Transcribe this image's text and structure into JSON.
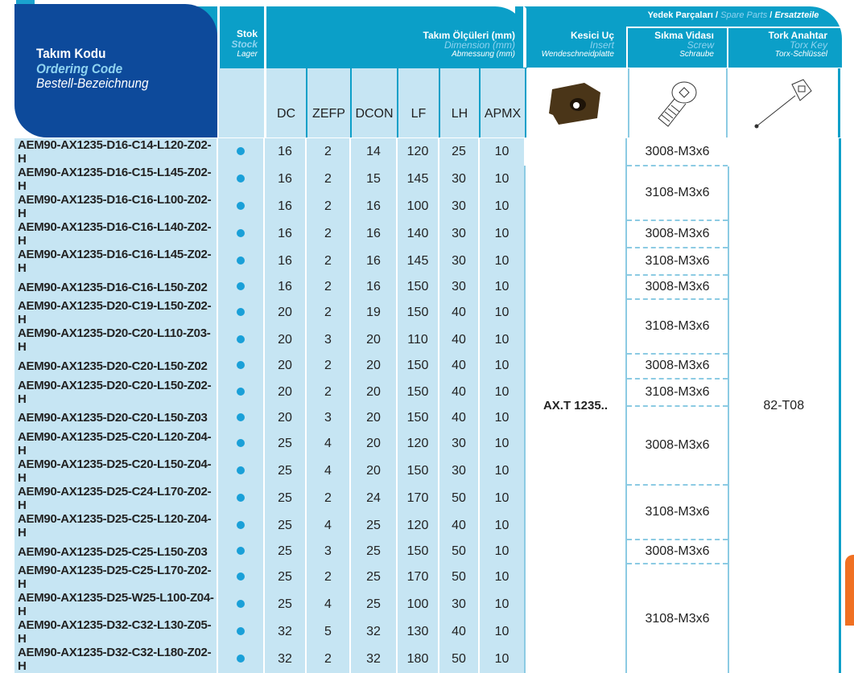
{
  "header": {
    "ordering_code": {
      "tr": "Takım Kodu",
      "en": "Ordering Code",
      "de": "Bestell-Bezeichnung"
    },
    "stock": {
      "tr": "Stok",
      "en": "Stock",
      "de": "Lager"
    },
    "dimension": {
      "tr": "Takım Ölçüleri (mm)",
      "en": "Dimension (mm)",
      "de": "Abmessung (mm)"
    },
    "insert": {
      "tr": "Kesici Uç",
      "en": "Insert",
      "de": "Wendeschneidplatte"
    },
    "spare_parts": {
      "tr": "Yedek Parçaları",
      "en": "Spare Parts",
      "de": "Ersatzteile",
      "sep": "/"
    },
    "screw": {
      "tr": "Sıkma Vidası",
      "en": "Screw",
      "de": "Schraube"
    },
    "key": {
      "tr": "Tork Anahtar",
      "en": "Torx Key",
      "de": "Torx-Schlüssel"
    },
    "columns": [
      "DC",
      "ZEFP",
      "DCON",
      "LF",
      "LH",
      "APMX"
    ]
  },
  "icons": {
    "insert": "insert-image",
    "screw": "torx-screw-icon",
    "key": "torx-key-icon",
    "stock": "stock-dot"
  },
  "colors": {
    "header": "#0b9fc8",
    "code_box": "#0d4a9b",
    "row_bg": "#c6e5f3",
    "stock_dot": "#1aa0d8"
  },
  "rows": [
    {
      "code": "AEM90-AX1235-D16-C14-L120-Z02-H",
      "v": [
        "16",
        "2",
        "14",
        "120",
        "25",
        "10"
      ]
    },
    {
      "code": "AEM90-AX1235-D16-C15-L145-Z02-H",
      "v": [
        "16",
        "2",
        "15",
        "145",
        "30",
        "10"
      ]
    },
    {
      "code": "AEM90-AX1235-D16-C16-L100-Z02-H",
      "v": [
        "16",
        "2",
        "16",
        "100",
        "30",
        "10"
      ]
    },
    {
      "code": "AEM90-AX1235-D16-C16-L140-Z02-H",
      "v": [
        "16",
        "2",
        "16",
        "140",
        "30",
        "10"
      ]
    },
    {
      "code": "AEM90-AX1235-D16-C16-L145-Z02-H",
      "v": [
        "16",
        "2",
        "16",
        "145",
        "30",
        "10"
      ]
    },
    {
      "code": "AEM90-AX1235-D16-C16-L150-Z02",
      "v": [
        "16",
        "2",
        "16",
        "150",
        "30",
        "10"
      ]
    },
    {
      "code": "AEM90-AX1235-D20-C19-L150-Z02-H",
      "v": [
        "20",
        "2",
        "19",
        "150",
        "40",
        "10"
      ]
    },
    {
      "code": "AEM90-AX1235-D20-C20-L110-Z03-H",
      "v": [
        "20",
        "3",
        "20",
        "110",
        "40",
        "10"
      ]
    },
    {
      "code": "AEM90-AX1235-D20-C20-L150-Z02",
      "v": [
        "20",
        "2",
        "20",
        "150",
        "40",
        "10"
      ]
    },
    {
      "code": "AEM90-AX1235-D20-C20-L150-Z02-H",
      "v": [
        "20",
        "2",
        "20",
        "150",
        "40",
        "10"
      ]
    },
    {
      "code": "AEM90-AX1235-D20-C20-L150-Z03",
      "v": [
        "20",
        "3",
        "20",
        "150",
        "40",
        "10"
      ]
    },
    {
      "code": "AEM90-AX1235-D25-C20-L120-Z04-H",
      "v": [
        "25",
        "4",
        "20",
        "120",
        "30",
        "10"
      ]
    },
    {
      "code": "AEM90-AX1235-D25-C20-L150-Z04-H",
      "v": [
        "25",
        "4",
        "20",
        "150",
        "30",
        "10"
      ]
    },
    {
      "code": "AEM90-AX1235-D25-C24-L170-Z02-H",
      "v": [
        "25",
        "2",
        "24",
        "170",
        "50",
        "10"
      ]
    },
    {
      "code": "AEM90-AX1235-D25-C25-L120-Z04-H",
      "v": [
        "25",
        "4",
        "25",
        "120",
        "40",
        "10"
      ]
    },
    {
      "code": "AEM90-AX1235-D25-C25-L150-Z03",
      "v": [
        "25",
        "3",
        "25",
        "150",
        "50",
        "10"
      ]
    },
    {
      "code": "AEM90-AX1235-D25-C25-L170-Z02-H",
      "v": [
        "25",
        "2",
        "25",
        "170",
        "50",
        "10"
      ]
    },
    {
      "code": "AEM90-AX1235-D25-W25-L100-Z04-H",
      "v": [
        "25",
        "4",
        "25",
        "100",
        "30",
        "10"
      ]
    },
    {
      "code": "AEM90-AX1235-D32-C32-L130-Z05-H",
      "v": [
        "32",
        "5",
        "32",
        "130",
        "40",
        "10"
      ]
    },
    {
      "code": "AEM90-AX1235-D32-C32-L180-Z02-H",
      "v": [
        "32",
        "2",
        "32",
        "180",
        "50",
        "10"
      ]
    }
  ],
  "insert_value": "AX.T 1235..",
  "key_value": "82-T08",
  "screws": [
    {
      "value": "3008-M3x6",
      "rows": 1
    },
    {
      "value": "3108-M3x6",
      "rows": 2
    },
    {
      "value": "3008-M3x6",
      "rows": 1
    },
    {
      "value": "3108-M3x6",
      "rows": 1
    },
    {
      "value": "3008-M3x6",
      "rows": 1
    },
    {
      "value": "3108-M3x6",
      "rows": 2
    },
    {
      "value": "3008-M3x6",
      "rows": 1
    },
    {
      "value": "3108-M3x6",
      "rows": 1
    },
    {
      "value": "3008-M3x6",
      "rows": 3
    },
    {
      "value": "3108-M3x6",
      "rows": 2
    },
    {
      "value": "3008-M3x6",
      "rows": 1
    },
    {
      "value": "3108-M3x6",
      "rows": 4
    }
  ]
}
